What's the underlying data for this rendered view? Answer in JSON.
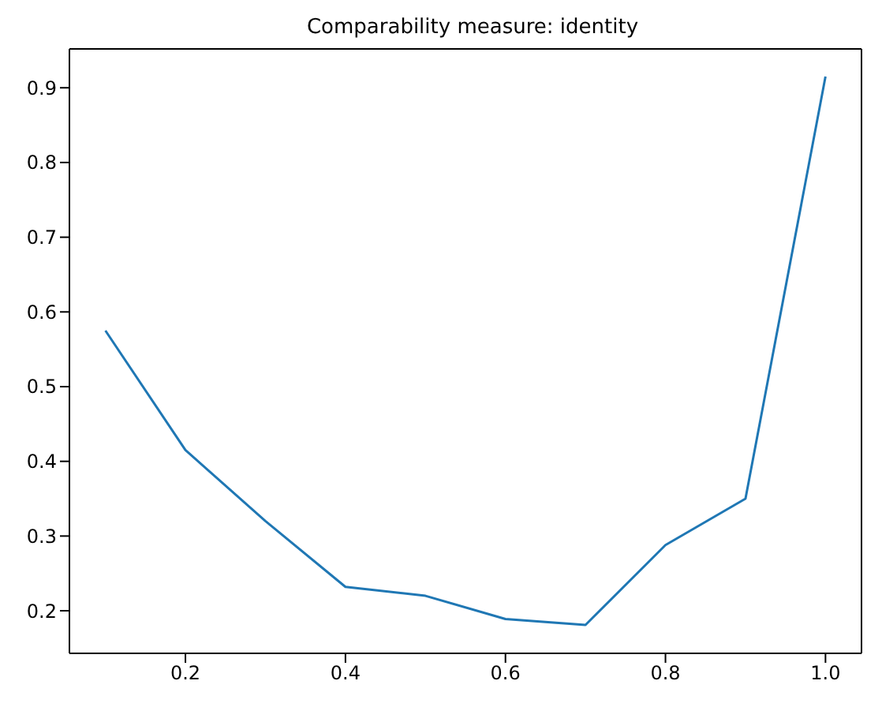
{
  "chart_data": {
    "type": "line",
    "title": "Comparability measure: identity",
    "x": [
      0.1,
      0.2,
      0.3,
      0.4,
      0.5,
      0.6,
      0.7,
      0.8,
      0.9,
      1.0
    ],
    "series": [
      {
        "color": "#1f77b4",
        "values": [
          0.575,
          0.415,
          0.32,
          0.232,
          0.22,
          0.189,
          0.181,
          0.288,
          0.35,
          0.915
        ]
      }
    ],
    "xlim": [
      0.055,
      1.045
    ],
    "ylim": [
      0.143,
      0.952
    ],
    "xticks": [
      0.2,
      0.4,
      0.6,
      0.8,
      {
        "value": 1,
        "label": "1.0"
      }
    ],
    "yticks": [
      0.2,
      0.3,
      0.4,
      0.5,
      0.6,
      0.7,
      0.8,
      0.9
    ]
  }
}
